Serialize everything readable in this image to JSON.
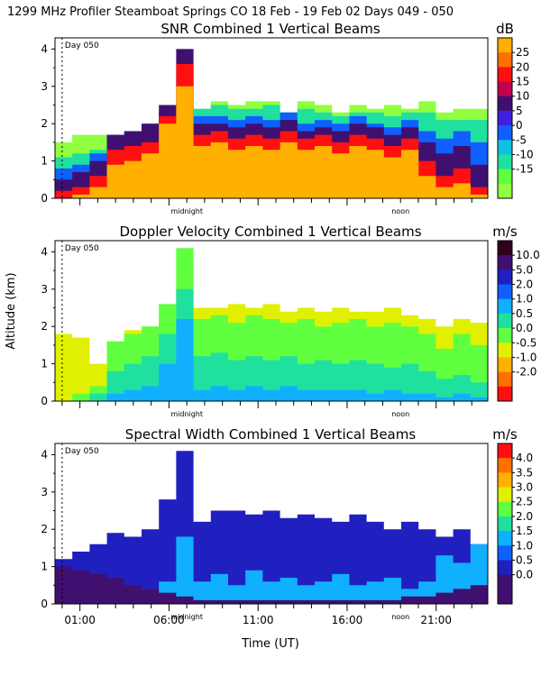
{
  "header": "1299 MHz Profiler  Steamboat Springs CO  18 Feb - 19 Feb 02 Days 049 - 050",
  "shared": {
    "ylabel": "Altitude (km)",
    "xlabel": "Time (UT)",
    "ylim": [
      0,
      4.3
    ],
    "y_ticks": [
      "0",
      "1",
      "2",
      "3",
      "4"
    ],
    "x_ticks": [
      "01:00",
      "06:00",
      "11:00",
      "16:00",
      "21:00"
    ],
    "x_tick_hours": [
      1,
      6,
      11,
      16,
      21
    ],
    "x_range_hours": [
      -0.4,
      23.9
    ],
    "day_marker_hour": 0,
    "day_label": "Day 050",
    "midnight_label": "midnight",
    "noon_label": "noon",
    "midnight_hour": 7,
    "noon_hour": 19
  },
  "chart_data": [
    {
      "type": "heatmap",
      "title": "SNR Combined 1 Vertical Beams",
      "unit": "dB",
      "legend_labels": [
        "25",
        "20",
        "15",
        "10",
        "5",
        "0",
        "-5",
        "-10",
        "-15"
      ],
      "legend_colors": [
        "#ffb000",
        "#ff7000",
        "#ff1010",
        "#c00050",
        "#401070",
        "#4020e0",
        "#1060ff",
        "#10c0e0",
        "#20e0a0",
        "#60ff40",
        "#90ff40"
      ],
      "layers": [
        {
          "color": "#90ff40",
          "tops": [
            1.5,
            1.7,
            1.7,
            1.6,
            1.6,
            1.7,
            1.8,
            2.2,
            2.4,
            2.6,
            2.5,
            2.6,
            2.6,
            2.3,
            2.6,
            2.5,
            2.3,
            2.5,
            2.4,
            2.5,
            2.4,
            2.6,
            2.3,
            2.4,
            2.4
          ]
        },
        {
          "color": "#20e0a0",
          "tops": [
            1.1,
            1.2,
            1.3,
            1.5,
            1.6,
            1.8,
            1.9,
            2.3,
            2.4,
            2.5,
            2.4,
            2.4,
            2.5,
            2.3,
            2.4,
            2.3,
            2.2,
            2.3,
            2.3,
            2.2,
            2.3,
            2.3,
            2.1,
            2.1,
            2.1
          ]
        },
        {
          "color": "#1060ff",
          "tops": [
            0.8,
            0.9,
            1.2,
            1.7,
            1.8,
            2.0,
            2.3,
            3.2,
            2.2,
            2.2,
            2.1,
            2.2,
            2.1,
            2.3,
            2.0,
            2.1,
            2.0,
            2.2,
            2.0,
            1.9,
            2.1,
            1.8,
            1.6,
            1.8,
            1.5
          ]
        },
        {
          "color": "#401070",
          "tops": [
            0.5,
            0.7,
            1.0,
            1.7,
            1.8,
            2.0,
            2.5,
            4.0,
            2.0,
            2.0,
            1.9,
            2.0,
            1.9,
            2.1,
            1.8,
            1.9,
            1.8,
            2.0,
            1.9,
            1.7,
            1.9,
            1.5,
            1.2,
            1.4,
            0.9
          ]
        },
        {
          "color": "#ff1010",
          "tops": [
            0.2,
            0.3,
            0.6,
            1.3,
            1.4,
            1.5,
            2.2,
            3.6,
            1.7,
            1.8,
            1.6,
            1.7,
            1.6,
            1.8,
            1.6,
            1.7,
            1.5,
            1.7,
            1.6,
            1.4,
            1.6,
            1.0,
            0.6,
            0.8,
            0.3
          ]
        },
        {
          "color": "#ffb000",
          "tops": [
            0.0,
            0.1,
            0.3,
            0.9,
            1.0,
            1.2,
            2.0,
            3.0,
            1.4,
            1.5,
            1.3,
            1.4,
            1.3,
            1.5,
            1.3,
            1.4,
            1.2,
            1.4,
            1.3,
            1.1,
            1.3,
            0.6,
            0.3,
            0.4,
            0.1
          ]
        }
      ]
    },
    {
      "type": "heatmap",
      "title": "Doppler Velocity Combined 1 Vertical Beams",
      "unit": "m/s",
      "legend_labels": [
        "10.0",
        "5.0",
        "2.0",
        "1.0",
        "0.5",
        "0.0",
        "-0.5",
        "-1.0",
        "-2.0"
      ],
      "legend_colors": [
        "#300020",
        "#401070",
        "#2020c0",
        "#1060ff",
        "#10b0ff",
        "#20e0a0",
        "#60ff40",
        "#e0f000",
        "#ffb000",
        "#ff7000",
        "#ff1010"
      ],
      "layers": [
        {
          "color": "#e0f000",
          "tops": [
            1.8,
            1.7,
            1.0,
            1.6,
            1.9,
            2.0,
            2.3,
            3.6,
            2.5,
            2.5,
            2.6,
            2.5,
            2.6,
            2.4,
            2.5,
            2.4,
            2.5,
            2.4,
            2.4,
            2.5,
            2.3,
            2.2,
            2.0,
            2.2,
            2.1
          ]
        },
        {
          "color": "#60ff40",
          "tops": [
            0.0,
            0.2,
            0.4,
            1.6,
            1.8,
            2.0,
            2.6,
            4.1,
            2.2,
            2.3,
            2.1,
            2.3,
            2.2,
            2.1,
            2.2,
            2.0,
            2.1,
            2.2,
            2.0,
            2.1,
            2.0,
            1.8,
            1.4,
            1.8,
            1.5
          ]
        },
        {
          "color": "#20e0a0",
          "tops": [
            0.0,
            0.0,
            0.2,
            0.8,
            1.0,
            1.2,
            1.8,
            3.0,
            1.2,
            1.3,
            1.1,
            1.2,
            1.1,
            1.2,
            1.0,
            1.1,
            1.0,
            1.1,
            1.0,
            0.9,
            1.0,
            0.8,
            0.6,
            0.7,
            0.5
          ]
        },
        {
          "color": "#10b0ff",
          "tops": [
            0.0,
            0.0,
            0.0,
            0.2,
            0.3,
            0.4,
            1.0,
            2.2,
            0.3,
            0.4,
            0.3,
            0.4,
            0.3,
            0.4,
            0.3,
            0.3,
            0.3,
            0.3,
            0.2,
            0.3,
            0.2,
            0.2,
            0.1,
            0.2,
            0.1
          ]
        }
      ]
    },
    {
      "type": "heatmap",
      "title": "Spectral Width Combined 1 Vertical Beams",
      "unit": "m/s",
      "legend_labels": [
        "4.0",
        "3.5",
        "3.0",
        "2.5",
        "2.0",
        "1.5",
        "1.0",
        "0.5",
        "0.0"
      ],
      "legend_colors": [
        "#ff1010",
        "#ff7000",
        "#ffb000",
        "#e0f000",
        "#60ff40",
        "#20e0a0",
        "#10b0ff",
        "#1060ff",
        "#2020c0",
        "#401070",
        "#401070"
      ],
      "layers": [
        {
          "color": "#2020c0",
          "tops": [
            1.2,
            1.4,
            1.6,
            1.9,
            1.8,
            2.0,
            2.8,
            4.1,
            2.2,
            2.5,
            2.5,
            2.4,
            2.5,
            2.3,
            2.4,
            2.3,
            2.2,
            2.4,
            2.2,
            2.0,
            2.2,
            2.0,
            1.8,
            2.0,
            1.6
          ]
        },
        {
          "color": "#10b0ff",
          "tops": [
            0.0,
            0.0,
            0.0,
            0.2,
            0.3,
            0.4,
            0.6,
            1.8,
            0.6,
            0.8,
            0.5,
            0.9,
            0.6,
            0.7,
            0.5,
            0.6,
            0.8,
            0.5,
            0.6,
            0.7,
            0.4,
            0.6,
            1.3,
            1.1,
            1.6
          ]
        },
        {
          "color": "#401070",
          "tops": [
            1.0,
            0.9,
            0.8,
            0.7,
            0.5,
            0.4,
            0.3,
            0.2,
            0.1,
            0.1,
            0.1,
            0.1,
            0.1,
            0.1,
            0.1,
            0.1,
            0.1,
            0.1,
            0.1,
            0.1,
            0.2,
            0.2,
            0.3,
            0.4,
            0.5
          ]
        }
      ]
    }
  ]
}
